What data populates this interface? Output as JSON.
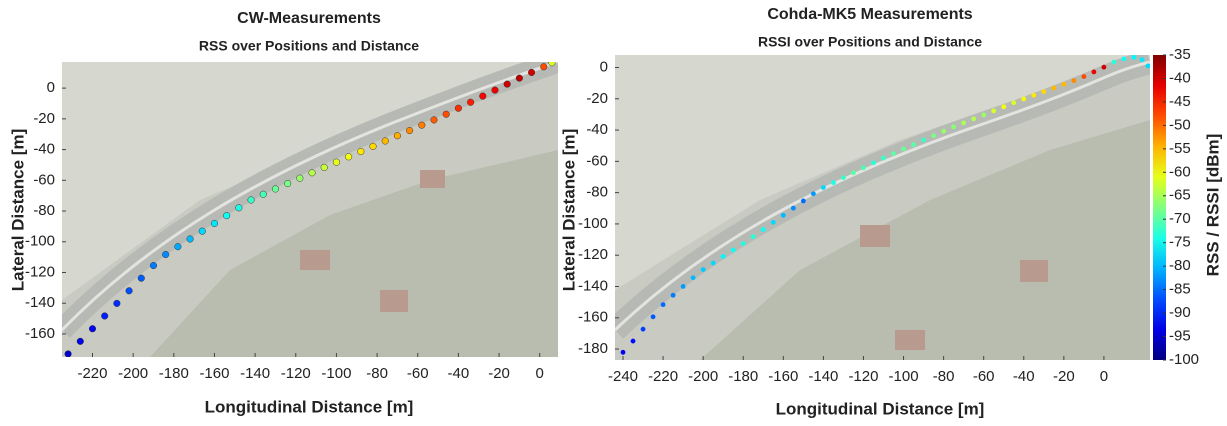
{
  "chart_data": [
    {
      "type": "scatter",
      "title": "CW-Measurements",
      "subtitle": "RSS over Positions and Distance",
      "xlabel": "Longitudinal Distance [m]",
      "ylabel": "Lateral Distance [m]",
      "xlim": [
        -235,
        9
      ],
      "ylim": [
        -175,
        17
      ],
      "xticks": [
        -220,
        -200,
        -180,
        -160,
        -140,
        -120,
        -100,
        -80,
        -60,
        -40,
        -20,
        0
      ],
      "yticks": [
        0,
        -20,
        -40,
        -60,
        -80,
        -100,
        -120,
        -140,
        -160
      ],
      "x": [
        -232,
        -226,
        -220,
        -214,
        -208,
        -202,
        -196,
        -190,
        -184,
        -178,
        -172,
        -166,
        -160,
        -154,
        -148,
        -142,
        -136,
        -130,
        -124,
        -118,
        -112,
        -106,
        -100,
        -94,
        -88,
        -82,
        -76,
        -70,
        -64,
        -58,
        -52,
        -46,
        -40,
        -34,
        -28,
        -22,
        -16,
        -10,
        -4,
        2,
        6
      ],
      "y": [
        -173,
        -164.8,
        -156.6,
        -148.3,
        -140.1,
        -131.9,
        -123.7,
        -115.5,
        -108.3,
        -103.2,
        -98.2,
        -93.1,
        -88.1,
        -83.0,
        -77.9,
        -72.8,
        -69.1,
        -65.6,
        -62.1,
        -58.6,
        -55.1,
        -51.6,
        -48.2,
        -44.7,
        -41.3,
        -37.9,
        -34.4,
        -31.0,
        -27.6,
        -24.1,
        -20.7,
        -17.0,
        -13.1,
        -9.2,
        -5.2,
        -1.3,
        2.6,
        6.5,
        10.2,
        13.9,
        16.5
      ],
      "values": [
        -95,
        -93,
        -92,
        -90,
        -89,
        -87,
        -86,
        -84,
        -83,
        -81,
        -80,
        -78,
        -77,
        -75,
        -74,
        -72,
        -71,
        -69,
        -68,
        -66,
        -64,
        -63,
        -61,
        -60,
        -58,
        -57,
        -55,
        -54,
        -52,
        -51,
        -49,
        -48,
        -46,
        -45,
        -43,
        -42,
        -40,
        -39,
        -40,
        -48,
        -62
      ],
      "marker_edge": "#333333"
    },
    {
      "type": "scatter",
      "title": "Cohda-MK5 Measurements",
      "subtitle": "RSSI over Positions and Distance",
      "xlabel": "Longitudinal Distance [m]",
      "ylabel": "Lateral Distance [m]",
      "xlim": [
        -244,
        23
      ],
      "ylim": [
        -187,
        8
      ],
      "xticks": [
        -240,
        -220,
        -200,
        -180,
        -160,
        -140,
        -120,
        -100,
        -80,
        -60,
        -40,
        -20,
        0
      ],
      "yticks": [
        0,
        -20,
        -40,
        -60,
        -80,
        -100,
        -120,
        -140,
        -160,
        -180
      ],
      "x": [
        -240,
        -235,
        -230,
        -225,
        -220,
        -215,
        -210,
        -205,
        -200,
        -195,
        -190,
        -185,
        -180,
        -175,
        -170,
        -165,
        -160,
        -155,
        -150,
        -145,
        -140,
        -135,
        -130,
        -125,
        -120,
        -115,
        -110,
        -105,
        -100,
        -95,
        -90,
        -85,
        -80,
        -75,
        -70,
        -65,
        -60,
        -55,
        -50,
        -45,
        -40,
        -35,
        -30,
        -25,
        -20,
        -15,
        -10,
        -5,
        0,
        5,
        10,
        15,
        19,
        22
      ],
      "y": [
        -182.1,
        -174.9,
        -167.3,
        -159.4,
        -151.6,
        -145.6,
        -140.0,
        -134.4,
        -129.2,
        -125.0,
        -120.8,
        -116.7,
        -112.5,
        -108.2,
        -103.6,
        -99.0,
        -94.5,
        -89.9,
        -85.3,
        -80.7,
        -76.7,
        -73.6,
        -70.4,
        -67.2,
        -64.1,
        -60.9,
        -57.9,
        -55.0,
        -52.1,
        -49.3,
        -46.4,
        -43.6,
        -40.7,
        -38.0,
        -35.4,
        -32.8,
        -30.3,
        -27.7,
        -25.1,
        -22.5,
        -20.1,
        -17.7,
        -15.4,
        -13.1,
        -10.7,
        -8.4,
        -5.8,
        -2.8,
        0.2,
        3.5,
        5.5,
        6.5,
        5.0,
        1.0
      ],
      "values": [
        -92,
        -91,
        -88,
        -86,
        -85,
        -84,
        -82,
        -80,
        -79,
        -78,
        -76,
        -75,
        -74,
        -73,
        -75,
        -78,
        -80,
        -83,
        -85,
        -82,
        -78,
        -74,
        -72,
        -70,
        -71,
        -73,
        -72,
        -70,
        -69,
        -70,
        -72,
        -68,
        -66,
        -67,
        -65,
        -64,
        -66,
        -62,
        -60,
        -62,
        -60,
        -58,
        -57,
        -55,
        -55,
        -52,
        -48,
        -42,
        -40,
        -73,
        -75,
        -76,
        -77,
        -78
      ],
      "colorbar": {
        "label": "RSS / RSSI [dBm]",
        "colormap": "jet",
        "lim": [
          -100,
          -35
        ],
        "ticks": [
          -35,
          -40,
          -45,
          -50,
          -55,
          -60,
          -65,
          -70,
          -75,
          -80,
          -85,
          -90,
          -95,
          -100
        ]
      }
    }
  ]
}
